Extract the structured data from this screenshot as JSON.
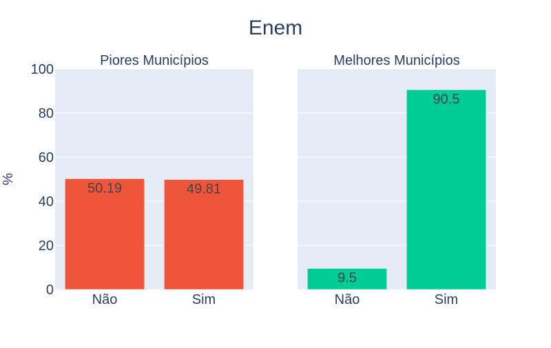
{
  "title": "Enem",
  "ylabel": "%",
  "colors": {
    "background": "#ffffff",
    "plot_bg": "#e5ecf6",
    "text": "#2a3f5f",
    "grid": "#ffffff",
    "bar_label": "#444444"
  },
  "chart_data": [
    {
      "type": "bar",
      "title": "Piores Municípios",
      "categories": [
        "Não",
        "Sim"
      ],
      "values": [
        50.19,
        49.81
      ],
      "labels": [
        "50.19",
        "49.81"
      ],
      "color": "#ef553b",
      "ylim": [
        0,
        100
      ],
      "yticks": [
        0,
        20,
        40,
        60,
        80,
        100
      ],
      "show_yticks": true
    },
    {
      "type": "bar",
      "title": "Melhores Municípios",
      "categories": [
        "Não",
        "Sim"
      ],
      "values": [
        9.5,
        90.5
      ],
      "labels": [
        "9.5",
        "90.5"
      ],
      "color": "#00cc96",
      "ylim": [
        0,
        100
      ],
      "yticks": [
        0,
        20,
        40,
        60,
        80,
        100
      ],
      "show_yticks": false
    }
  ]
}
